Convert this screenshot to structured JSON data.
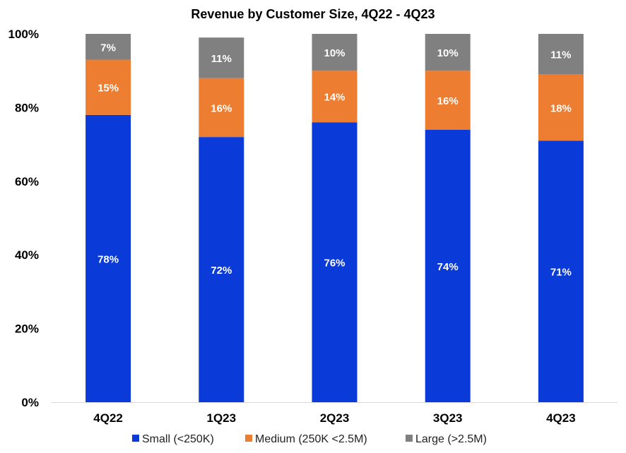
{
  "chart_data": {
    "type": "bar",
    "stacked": true,
    "percent": true,
    "title": "Revenue by Customer Size, 4Q22 - 4Q23",
    "xlabel": "",
    "ylabel": "",
    "ylim": [
      0,
      100
    ],
    "yticks": [
      0,
      20,
      40,
      60,
      80,
      100
    ],
    "ytick_labels": [
      "0%",
      "20%",
      "40%",
      "60%",
      "80%",
      "100%"
    ],
    "categories": [
      "4Q22",
      "1Q23",
      "2Q23",
      "3Q23",
      "4Q23"
    ],
    "series": [
      {
        "name": "Small (<250K)",
        "color": "#0a3ad8",
        "values": [
          78,
          72,
          76,
          74,
          71
        ],
        "labels": [
          "78%",
          "72%",
          "76%",
          "74%",
          "71%"
        ]
      },
      {
        "name": "Medium (250K <2.5M)",
        "color": "#ed7d31",
        "values": [
          15,
          16,
          14,
          16,
          18
        ],
        "labels": [
          "15%",
          "16%",
          "14%",
          "16%",
          "18%"
        ]
      },
      {
        "name": "Large (>2.5M)",
        "color": "#808080",
        "values": [
          7,
          11,
          10,
          10,
          11
        ],
        "labels": [
          "7%",
          "11%",
          "10%",
          "10%",
          "11%"
        ]
      }
    ],
    "legend_position": "bottom",
    "grid": false
  }
}
